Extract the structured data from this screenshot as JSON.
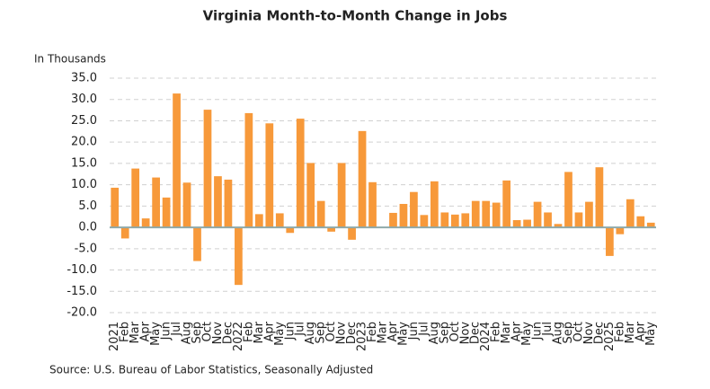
{
  "chart_data": {
    "type": "bar",
    "title": "Virginia Month-to-Month Change in Jobs",
    "y_axis_label": "In Thousands",
    "source": "Source: U.S. Bureau of Labor Statistics, Seasonally Adjusted",
    "categories": [
      "2021",
      "Feb",
      "Mar",
      "Apr",
      "May",
      "Jun",
      "Jul",
      "Aug",
      "Sep",
      "Oct",
      "Nov",
      "Dec",
      "2022",
      "Feb",
      "Mar",
      "Apr",
      "May",
      "Jun",
      "Jul",
      "Aug",
      "Sep",
      "Oct",
      "Nov",
      "Dec",
      "2023",
      "Feb",
      "Mar",
      "Apr",
      "May",
      "Jun",
      "Jul",
      "Aug",
      "Sep",
      "Oct",
      "Nov",
      "Dec",
      "2024",
      "Feb",
      "Mar",
      "Apr",
      "May",
      "Jun",
      "Jul",
      "Aug",
      "Sep",
      "Oct",
      "Nov",
      "Dec",
      "2025",
      "Feb",
      "Mar",
      "Apr",
      "May"
    ],
    "values": [
      9.3,
      -2.6,
      13.8,
      2.1,
      11.7,
      7.0,
      31.4,
      10.5,
      -7.9,
      27.6,
      12.0,
      11.2,
      -13.5,
      26.8,
      3.1,
      24.4,
      3.3,
      -1.3,
      25.5,
      15.1,
      6.2,
      -1.0,
      15.1,
      -2.9,
      22.6,
      10.6,
      0,
      3.4,
      5.5,
      8.3,
      2.9,
      10.8,
      3.5,
      3.0,
      3.3,
      6.2,
      6.2,
      5.8,
      11.0,
      1.7,
      1.8,
      6.0,
      3.5,
      0.8,
      13.0,
      3.5,
      6.0,
      14.1,
      -6.7,
      -1.6,
      6.6,
      2.6,
      1.1
    ],
    "color": "#f7993a",
    "ylim": [
      -20,
      35
    ],
    "yticks": [
      {
        "value": -20,
        "label": "-20.0"
      },
      {
        "value": -15,
        "label": "-15.0"
      },
      {
        "value": -10,
        "label": "-10.0"
      },
      {
        "value": -5,
        "label": "-5.0"
      },
      {
        "value": 0,
        "label": "0.0"
      },
      {
        "value": 5,
        "label": "5.0"
      },
      {
        "value": 10,
        "label": "10.0"
      },
      {
        "value": 15,
        "label": "15.0"
      },
      {
        "value": 20,
        "label": "20.0"
      },
      {
        "value": 25,
        "label": "25.0"
      },
      {
        "value": 30,
        "label": "30.0"
      },
      {
        "value": 35,
        "label": "35.0"
      }
    ],
    "grid": true
  }
}
